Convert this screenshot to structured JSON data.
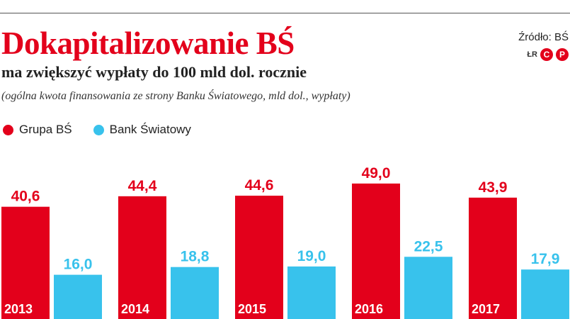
{
  "header": {
    "title": "Dokapitalizowanie BŚ",
    "subtitle": "ma zwiększyć wypłaty do 100 mld dol. rocznie",
    "note": "(ogólna kwota finansowania ze strony Banku Światowego, mld dol., wypłaty)",
    "source": "Źródło: BŚ",
    "author": "ŁR",
    "logo_letters": [
      "C",
      "P"
    ]
  },
  "legend": [
    {
      "label": "Grupa BŚ",
      "color": "#e3001b"
    },
    {
      "label": "Bank Światowy",
      "color": "#38c2ec"
    }
  ],
  "chart_data": {
    "type": "bar",
    "title": "Dokapitalizowanie BŚ",
    "subtitle": "ma zwiększyć wypłaty do 100 mld dol. rocznie",
    "xlabel": "",
    "ylabel": "mld dol.",
    "categories": [
      "2013",
      "2014",
      "2015",
      "2016",
      "2017"
    ],
    "series": [
      {
        "name": "Grupa BŚ",
        "color": "#e3001b",
        "values": [
          40.6,
          44.4,
          44.6,
          49.0,
          43.9
        ],
        "labels": [
          "40,6",
          "44,4",
          "44,6",
          "49,0",
          "43,9"
        ]
      },
      {
        "name": "Bank Światowy",
        "color": "#38c2ec",
        "values": [
          16.0,
          18.8,
          19.0,
          22.5,
          17.9
        ],
        "labels": [
          "16,0",
          "18,8",
          "19,0",
          "22,5",
          "17,9"
        ]
      }
    ],
    "legend_position": "top-left",
    "grid": false
  }
}
